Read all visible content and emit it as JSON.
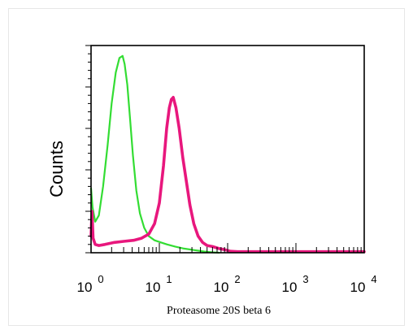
{
  "chart_data": {
    "type": "line",
    "title": "",
    "xlabel": "Proteasome 20S beta 6",
    "ylabel": "Counts",
    "x_scale": "log",
    "xlim": [
      1,
      10000
    ],
    "ylim": [
      0,
      100
    ],
    "x_ticks": [
      {
        "base": "10",
        "exp": "0"
      },
      {
        "base": "10",
        "exp": "1"
      },
      {
        "base": "10",
        "exp": "2"
      },
      {
        "base": "10",
        "exp": "3"
      },
      {
        "base": "10",
        "exp": "4"
      }
    ],
    "grid": false,
    "series": [
      {
        "color": "#33dd33",
        "x": [
          1.0,
          1.05,
          1.15,
          1.3,
          1.5,
          1.75,
          2.0,
          2.3,
          2.6,
          2.9,
          3.1,
          3.4,
          3.7,
          4.1,
          4.6,
          5.2,
          6.0,
          7.0,
          8.5,
          10.5,
          13,
          17,
          23,
          32,
          45,
          60,
          75
        ],
        "y": [
          31,
          22,
          15,
          18,
          32,
          52,
          72,
          87,
          94,
          95,
          91,
          81,
          66,
          47,
          30,
          19,
          12,
          8,
          6,
          5,
          4,
          3,
          2,
          1.3,
          0.6,
          0.2,
          0
        ]
      },
      {
        "color": "#e8177d",
        "x": [
          1.0,
          1.03,
          1.07,
          1.15,
          1.3,
          1.6,
          2.2,
          3.0,
          4.2,
          5.5,
          7.0,
          8.5,
          10.0,
          11.5,
          12.8,
          14.0,
          15.0,
          16.0,
          17.5,
          19.5,
          22,
          25,
          28,
          32,
          37,
          43,
          50,
          60,
          75,
          90,
          110,
          140,
          10000
        ],
        "y": [
          8,
          20,
          7,
          4,
          3.5,
          4,
          5,
          5.5,
          6,
          7,
          9,
          14,
          24,
          42,
          60,
          70,
          74,
          75,
          70,
          60,
          46,
          34,
          23,
          14,
          8,
          5,
          3.5,
          3,
          2,
          1.5,
          0.7,
          0.5,
          0.5
        ]
      }
    ]
  }
}
